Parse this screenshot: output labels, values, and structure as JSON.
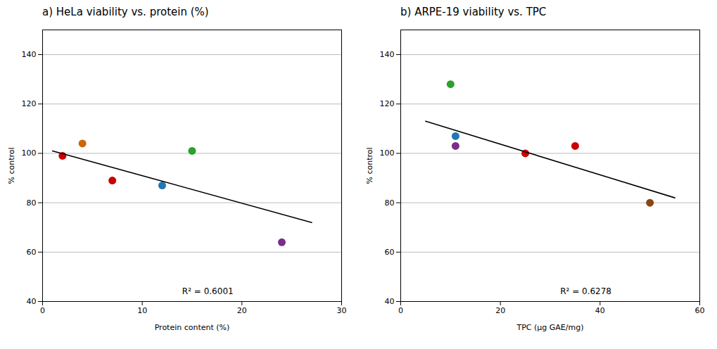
{
  "chart_data": [
    {
      "type": "scatter",
      "title": "a)  HeLa viability vs. protein (%)",
      "xlabel": "Protein content (%)",
      "ylabel": "% control",
      "xlim": [
        0,
        30
      ],
      "ylim": [
        40,
        150
      ],
      "xticks": [
        0,
        10,
        20,
        30
      ],
      "yticks": [
        40,
        60,
        80,
        100,
        120,
        140
      ],
      "grid": "y",
      "series": [
        {
          "type": "scatter",
          "x": [
            2,
            4,
            7,
            12,
            15,
            24
          ],
          "values": [
            99,
            104,
            89,
            87,
            101,
            64
          ],
          "colors": [
            "#CC0000",
            "#CC6600",
            "#CC0000",
            "#1F77B4",
            "#2CA02C",
            "#7B2D8B"
          ]
        },
        {
          "type": "line",
          "x": [
            1,
            27
          ],
          "values": [
            101,
            72
          ],
          "color": "#000000"
        }
      ],
      "annotations": [
        {
          "text": "R² = 0.6001",
          "x": 14,
          "y": 44
        }
      ]
    },
    {
      "type": "scatter",
      "title": "b)  ARPE-19 viability vs. TPC",
      "xlabel": "TPC (μg GAE/mg)",
      "ylabel": "% control",
      "xlim": [
        0,
        60
      ],
      "ylim": [
        40,
        150
      ],
      "xticks": [
        0,
        20,
        40,
        60
      ],
      "yticks": [
        40,
        60,
        80,
        100,
        120,
        140
      ],
      "grid": "y",
      "series": [
        {
          "type": "scatter",
          "x": [
            10,
            11,
            11,
            25,
            35,
            50
          ],
          "values": [
            128,
            107,
            103,
            100,
            103,
            80
          ],
          "colors": [
            "#2CA02C",
            "#1F77B4",
            "#7B2D8B",
            "#CC0000",
            "#CC0000",
            "#8B4513"
          ]
        },
        {
          "type": "line",
          "x": [
            5,
            55
          ],
          "values": [
            113,
            82
          ],
          "color": "#000000"
        }
      ],
      "annotations": [
        {
          "text": "R² = 0.6278",
          "x": 32,
          "y": 44
        }
      ]
    }
  ]
}
